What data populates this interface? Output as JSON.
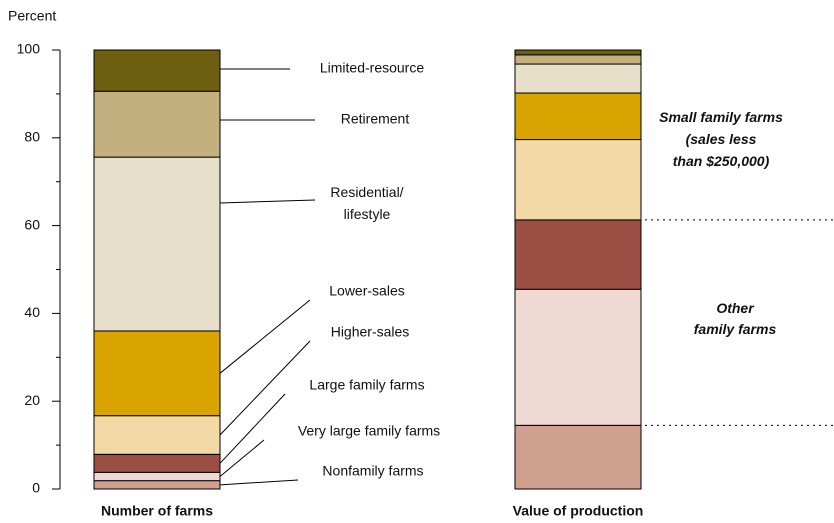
{
  "chart_data": {
    "type": "stacked_bar",
    "y_label": "Percent",
    "categories": [
      "Number of farms",
      "Value of production"
    ],
    "series": [
      {
        "name": "Nonfamily farms",
        "color": "#cfa08f",
        "values": [
          1.9,
          14.5
        ]
      },
      {
        "name": "Very large family farms",
        "color": "#eedad3",
        "values": [
          1.9,
          31.0
        ]
      },
      {
        "name": "Large family farms",
        "color": "#9b4f44",
        "values": [
          4.1,
          15.8
        ]
      },
      {
        "name": "Higher-sales",
        "color": "#f3d9a6",
        "values": [
          8.8,
          18.3
        ]
      },
      {
        "name": "Lower-sales",
        "color": "#d9a300",
        "values": [
          19.3,
          10.6
        ]
      },
      {
        "name": "Residential/\nlifestyle",
        "color": "#e8dfca",
        "values": [
          39.6,
          6.6
        ]
      },
      {
        "name": "Retirement",
        "color": "#c4b07f",
        "values": [
          15.0,
          2.1
        ]
      },
      {
        "name": "Limited-resource",
        "color": "#6e5e10",
        "values": [
          9.4,
          1.1
        ]
      }
    ],
    "annotations": [
      "Small family farms\n(sales less\nthan $250,000)",
      "Other\nfamily farms"
    ],
    "ylim": [
      0,
      100
    ],
    "yticks": [
      0,
      20,
      40,
      60,
      80,
      100
    ],
    "yticks_minor": [
      10,
      30,
      50,
      70,
      90
    ]
  }
}
